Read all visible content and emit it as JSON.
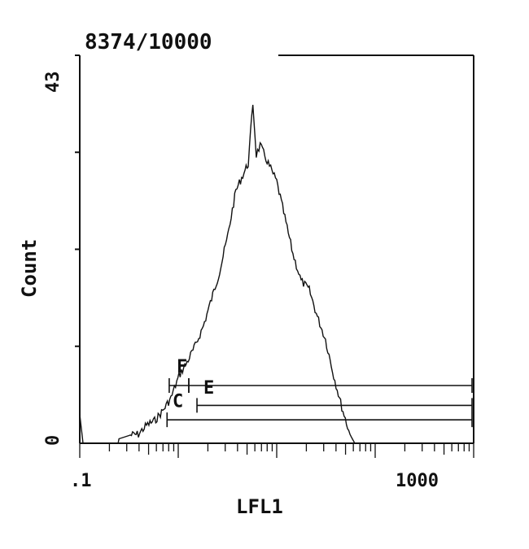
{
  "chart_data": {
    "type": "line",
    "subtype": "histogram",
    "title": "8374/10000",
    "xlabel": "LFL1",
    "ylabel": "Count",
    "xscale": "log",
    "xlim": [
      0.1,
      1000
    ],
    "ylim": [
      0,
      43
    ],
    "x_tick_labels": [
      ".1",
      "1000"
    ],
    "y_tick_labels": [
      "0",
      "43"
    ],
    "grid": false,
    "color": "#111111",
    "series": [
      {
        "x": [
          0.1,
          0.108,
          0.12,
          0.245,
          0.25,
          0.326,
          0.394,
          0.476,
          0.576,
          0.696,
          0.842,
          1.02,
          1.23,
          1.49,
          1.8,
          2.18,
          2.63,
          3.18,
          3.85,
          4.65,
          5.14,
          5.73,
          6.2,
          6.8,
          8.2,
          10,
          12.1,
          14.6,
          17.7,
          21.4,
          25.9,
          31.3,
          37.9,
          45.8,
          55.4,
          62,
          1000
        ],
        "y": [
          3.2,
          0,
          0,
          0,
          0.5,
          0.9,
          1,
          2,
          2.5,
          3.6,
          5,
          7.5,
          9,
          10.8,
          13,
          16,
          19,
          23,
          28,
          30,
          31,
          37.7,
          32,
          33,
          31,
          29,
          25,
          21,
          18,
          17,
          14,
          11.5,
          7.5,
          4,
          1,
          0,
          0
        ]
      }
    ],
    "markers": [
      {
        "label": "F",
        "x_start": 0.81,
        "x_end": 1.28,
        "level": 6.4
      },
      {
        "label": "E",
        "x_start": 1.28,
        "x_end": 1000,
        "level": 6.4
      },
      {
        "label": "C",
        "x_start": 1.55,
        "x_end": 1000,
        "level": 4.2
      },
      {
        "label": "",
        "x_start": 0.77,
        "x_end": 1000,
        "level": 2.6
      }
    ]
  }
}
